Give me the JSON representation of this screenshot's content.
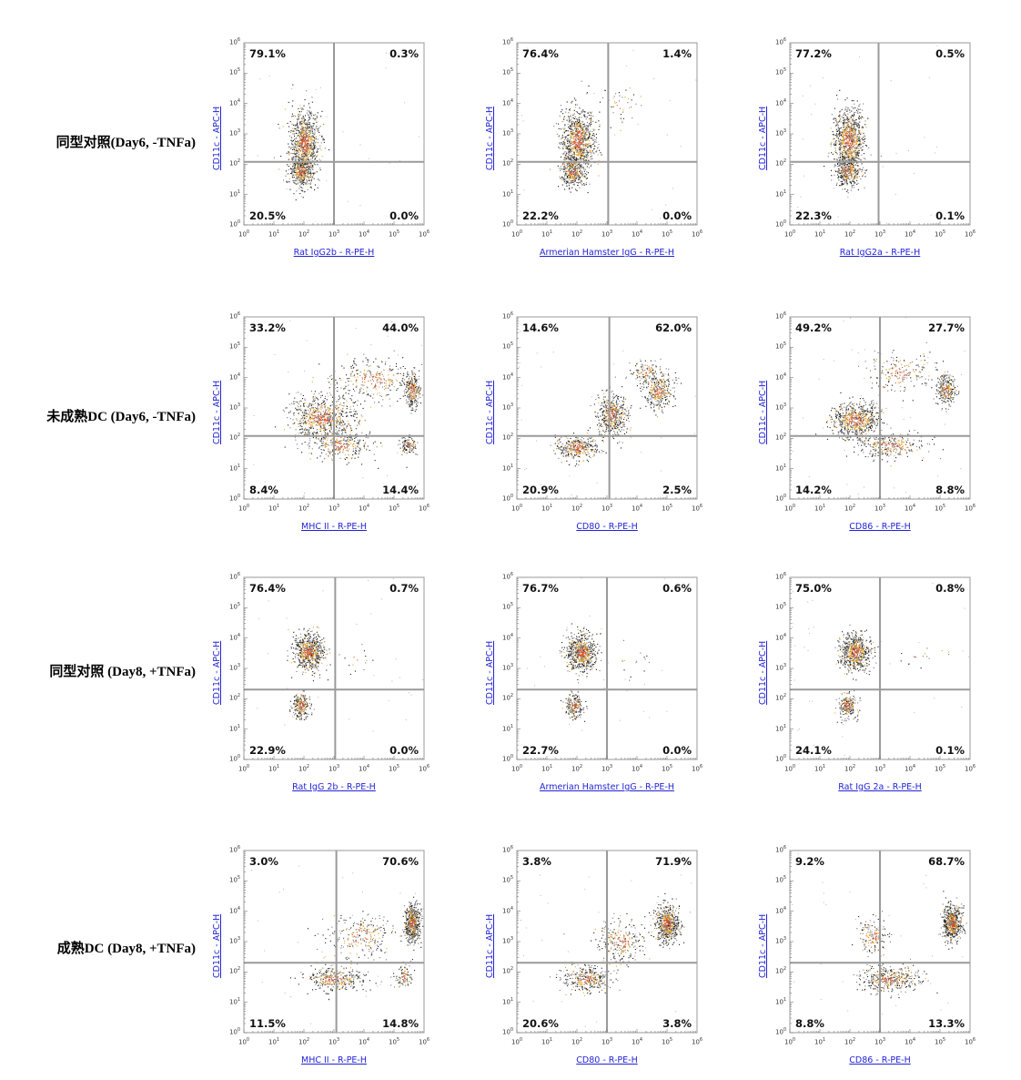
{
  "rows": [
    {
      "label": "同型对照(Day6, -TNFa)"
    },
    {
      "label": "未成熟DC (Day6, -TNFa)"
    },
    {
      "label": "同型对照 (Day8, +TNFa)"
    },
    {
      "label": "成熟DC (Day8, +TNFa)"
    }
  ],
  "colors": {
    "axis_label": "#2323d6",
    "gate_line": "#9a9a9a",
    "frame": "#9a9a9a",
    "dot_dark": "#1a1a1a",
    "dot_orange": "#f0a020",
    "dot_red": "#e8501a"
  },
  "chart_data": [
    {
      "type": "scatter",
      "row": 0,
      "col": 0,
      "xlabel": "Rat IgG2b - R-PE-H",
      "ylabel": "CD11c - APC-H",
      "xscale": "log",
      "yscale": "log",
      "xlim": [
        1,
        1000000
      ],
      "ylim": [
        1,
        1000000
      ],
      "gate": {
        "x": 1000,
        "y": 120
      },
      "quadrants": {
        "UL": "79.1%",
        "UR": "0.3%",
        "LL": "20.5%",
        "LR": "0.0%"
      },
      "populations": [
        {
          "x": 100,
          "y": 500,
          "sx": 0.25,
          "sy": 0.55,
          "n": 900
        },
        {
          "x": 80,
          "y": 60,
          "sx": 0.2,
          "sy": 0.25,
          "n": 350
        }
      ]
    },
    {
      "type": "scatter",
      "row": 0,
      "col": 1,
      "xlabel": "Armerian Hamster IgG - R-PE-H",
      "ylabel": "CD11c - APC-H",
      "xscale": "log",
      "yscale": "log",
      "xlim": [
        1,
        1000000
      ],
      "ylim": [
        1,
        1000000
      ],
      "gate": {
        "x": 1100,
        "y": 120
      },
      "quadrants": {
        "UL": "76.4%",
        "UR": "1.4%",
        "LL": "22.2%",
        "LR": "0.0%"
      },
      "populations": [
        {
          "x": 110,
          "y": 600,
          "sx": 0.28,
          "sy": 0.55,
          "n": 900
        },
        {
          "x": 70,
          "y": 60,
          "sx": 0.2,
          "sy": 0.25,
          "n": 350
        },
        {
          "x": 3000,
          "y": 10000,
          "sx": 0.3,
          "sy": 0.3,
          "n": 40
        }
      ]
    },
    {
      "type": "scatter",
      "row": 0,
      "col": 2,
      "xlabel": "Rat IgG2a - R-PE-H",
      "ylabel": "CD11c - APC-H",
      "xscale": "log",
      "yscale": "log",
      "xlim": [
        1,
        1000000
      ],
      "ylim": [
        1,
        1000000
      ],
      "gate": {
        "x": 900,
        "y": 120
      },
      "quadrants": {
        "UL": "77.2%",
        "UR": "0.5%",
        "LL": "22.3%",
        "LR": "0.1%"
      },
      "populations": [
        {
          "x": 90,
          "y": 600,
          "sx": 0.25,
          "sy": 0.55,
          "n": 900
        },
        {
          "x": 80,
          "y": 60,
          "sx": 0.2,
          "sy": 0.25,
          "n": 350
        }
      ]
    },
    {
      "type": "scatter",
      "row": 1,
      "col": 0,
      "xlabel": "MHC II - R-PE-H",
      "ylabel": "CD11c - APC-H",
      "xscale": "log",
      "yscale": "log",
      "xlim": [
        1,
        1000000
      ],
      "ylim": [
        1,
        1000000
      ],
      "gate": {
        "x": 1000,
        "y": 120
      },
      "quadrants": {
        "UL": "33.2%",
        "UR": "44.0%",
        "LL": "8.4%",
        "LR": "14.4%"
      },
      "populations": [
        {
          "x": 400,
          "y": 500,
          "sx": 0.55,
          "sy": 0.35,
          "n": 700
        },
        {
          "x": 1500,
          "y": 60,
          "sx": 0.5,
          "sy": 0.25,
          "n": 300
        },
        {
          "x": 400000,
          "y": 4000,
          "sx": 0.12,
          "sy": 0.3,
          "n": 250
        },
        {
          "x": 300000,
          "y": 60,
          "sx": 0.12,
          "sy": 0.15,
          "n": 120
        },
        {
          "x": 20000,
          "y": 8000,
          "sx": 0.7,
          "sy": 0.35,
          "n": 300
        }
      ]
    },
    {
      "type": "scatter",
      "row": 1,
      "col": 1,
      "xlabel": "CD80 - R-PE-H",
      "ylabel": "CD11c - APC-H",
      "xscale": "log",
      "yscale": "log",
      "xlim": [
        1,
        1000000
      ],
      "ylim": [
        1,
        1000000
      ],
      "gate": {
        "x": 1200,
        "y": 120
      },
      "quadrants": {
        "UL": "14.6%",
        "UR": "62.0%",
        "LL": "20.9%",
        "LR": "2.5%"
      },
      "populations": [
        {
          "x": 100,
          "y": 50,
          "sx": 0.35,
          "sy": 0.2,
          "n": 350
        },
        {
          "x": 1500,
          "y": 600,
          "sx": 0.25,
          "sy": 0.35,
          "n": 500
        },
        {
          "x": 50000,
          "y": 4000,
          "sx": 0.25,
          "sy": 0.3,
          "n": 350
        },
        {
          "x": 20000,
          "y": 15000,
          "sx": 0.25,
          "sy": 0.2,
          "n": 100
        }
      ]
    },
    {
      "type": "scatter",
      "row": 1,
      "col": 2,
      "xlabel": "CD86 - R-PE-H",
      "ylabel": "CD11c - APC-H",
      "xscale": "log",
      "yscale": "log",
      "xlim": [
        1,
        1000000
      ],
      "ylim": [
        1,
        1000000
      ],
      "gate": {
        "x": 1000,
        "y": 120
      },
      "quadrants": {
        "UL": "49.2%",
        "UR": "27.7%",
        "LL": "14.2%",
        "LR": "8.8%"
      },
      "populations": [
        {
          "x": 150,
          "y": 400,
          "sx": 0.4,
          "sy": 0.3,
          "n": 650
        },
        {
          "x": 2000,
          "y": 60,
          "sx": 0.6,
          "sy": 0.2,
          "n": 300
        },
        {
          "x": 150000,
          "y": 4000,
          "sx": 0.15,
          "sy": 0.25,
          "n": 250
        },
        {
          "x": 5000,
          "y": 15000,
          "sx": 0.6,
          "sy": 0.3,
          "n": 200
        }
      ]
    },
    {
      "type": "scatter",
      "row": 2,
      "col": 0,
      "xlabel": "Rat IgG 2b - R-PE-H",
      "ylabel": "CD11c - APC-H",
      "xscale": "log",
      "yscale": "log",
      "xlim": [
        1,
        1000000
      ],
      "ylim": [
        1,
        1000000
      ],
      "gate": {
        "x": 1100,
        "y": 200
      },
      "quadrants": {
        "UL": "76.4%",
        "UR": "0.7%",
        "LL": "22.9%",
        "LR": "0.0%"
      },
      "populations": [
        {
          "x": 140,
          "y": 3500,
          "sx": 0.25,
          "sy": 0.3,
          "n": 650
        },
        {
          "x": 80,
          "y": 60,
          "sx": 0.15,
          "sy": 0.2,
          "n": 220
        },
        {
          "x": 5000,
          "y": 2000,
          "sx": 0.3,
          "sy": 0.3,
          "n": 15
        }
      ]
    },
    {
      "type": "scatter",
      "row": 2,
      "col": 1,
      "xlabel": "Armerian Hamster IgG - R-PE-H",
      "ylabel": "CD11c - APC-H",
      "xscale": "log",
      "yscale": "log",
      "xlim": [
        1,
        1000000
      ],
      "ylim": [
        1,
        1000000
      ],
      "gate": {
        "x": 1000,
        "y": 200
      },
      "quadrants": {
        "UL": "76.7%",
        "UR": "0.6%",
        "LL": "22.7%",
        "LR": "0.0%"
      },
      "populations": [
        {
          "x": 140,
          "y": 3500,
          "sx": 0.25,
          "sy": 0.3,
          "n": 650
        },
        {
          "x": 80,
          "y": 60,
          "sx": 0.15,
          "sy": 0.2,
          "n": 220
        },
        {
          "x": 6000,
          "y": 2000,
          "sx": 0.35,
          "sy": 0.3,
          "n": 15
        }
      ]
    },
    {
      "type": "scatter",
      "row": 2,
      "col": 2,
      "xlabel": "Rat IgG 2a - R-PE-H",
      "ylabel": "CD11c - APC-H",
      "xscale": "log",
      "yscale": "log",
      "xlim": [
        1,
        1000000
      ],
      "ylim": [
        1,
        1000000
      ],
      "gate": {
        "x": 1000,
        "y": 200
      },
      "quadrants": {
        "UL": "75.0%",
        "UR": "0.8%",
        "LL": "24.1%",
        "LR": "0.1%"
      },
      "populations": [
        {
          "x": 150,
          "y": 3500,
          "sx": 0.25,
          "sy": 0.3,
          "n": 650
        },
        {
          "x": 80,
          "y": 60,
          "sx": 0.15,
          "sy": 0.2,
          "n": 220
        },
        {
          "x": 20000,
          "y": 2500,
          "sx": 0.5,
          "sy": 0.2,
          "n": 15
        }
      ]
    },
    {
      "type": "scatter",
      "row": 3,
      "col": 0,
      "xlabel": "MHC II - R-PE-H",
      "ylabel": "CD11c - APC-H",
      "xscale": "log",
      "yscale": "log",
      "xlim": [
        1,
        1000000
      ],
      "ylim": [
        1,
        1000000
      ],
      "gate": {
        "x": 1200,
        "y": 200
      },
      "quadrants": {
        "UL": "3.0%",
        "UR": "70.6%",
        "LL": "11.5%",
        "LR": "14.8%"
      },
      "populations": [
        {
          "x": 400000,
          "y": 4000,
          "sx": 0.12,
          "sy": 0.3,
          "n": 550
        },
        {
          "x": 1000,
          "y": 60,
          "sx": 0.55,
          "sy": 0.2,
          "n": 350
        },
        {
          "x": 200000,
          "y": 70,
          "sx": 0.15,
          "sy": 0.2,
          "n": 100
        },
        {
          "x": 8000,
          "y": 1500,
          "sx": 0.6,
          "sy": 0.35,
          "n": 250
        }
      ]
    },
    {
      "type": "scatter",
      "row": 3,
      "col": 1,
      "xlabel": "CD80 - R-PE-H",
      "ylabel": "CD11c - APC-H",
      "xscale": "log",
      "yscale": "log",
      "xlim": [
        1,
        1000000
      ],
      "ylim": [
        1,
        1000000
      ],
      "gate": {
        "x": 1000,
        "y": 200
      },
      "quadrants": {
        "UL": "3.8%",
        "UR": "71.9%",
        "LL": "20.6%",
        "LR": "3.8%"
      },
      "populations": [
        {
          "x": 100000,
          "y": 4000,
          "sx": 0.2,
          "sy": 0.3,
          "n": 600
        },
        {
          "x": 200,
          "y": 60,
          "sx": 0.4,
          "sy": 0.2,
          "n": 350
        },
        {
          "x": 3000,
          "y": 1000,
          "sx": 0.4,
          "sy": 0.35,
          "n": 250
        }
      ]
    },
    {
      "type": "scatter",
      "row": 3,
      "col": 2,
      "xlabel": "CD86 - R-PE-H",
      "ylabel": "CD11c - APC-H",
      "xscale": "log",
      "yscale": "log",
      "xlim": [
        1,
        1000000
      ],
      "ylim": [
        1,
        1000000
      ],
      "gate": {
        "x": 1000,
        "y": 200
      },
      "quadrants": {
        "UL": "9.2%",
        "UR": "68.7%",
        "LL": "8.8%",
        "LR": "13.3%"
      },
      "populations": [
        {
          "x": 250000,
          "y": 4000,
          "sx": 0.15,
          "sy": 0.3,
          "n": 600
        },
        {
          "x": 2000,
          "y": 60,
          "sx": 0.5,
          "sy": 0.2,
          "n": 400
        },
        {
          "x": 600,
          "y": 1500,
          "sx": 0.25,
          "sy": 0.3,
          "n": 150
        }
      ]
    }
  ]
}
